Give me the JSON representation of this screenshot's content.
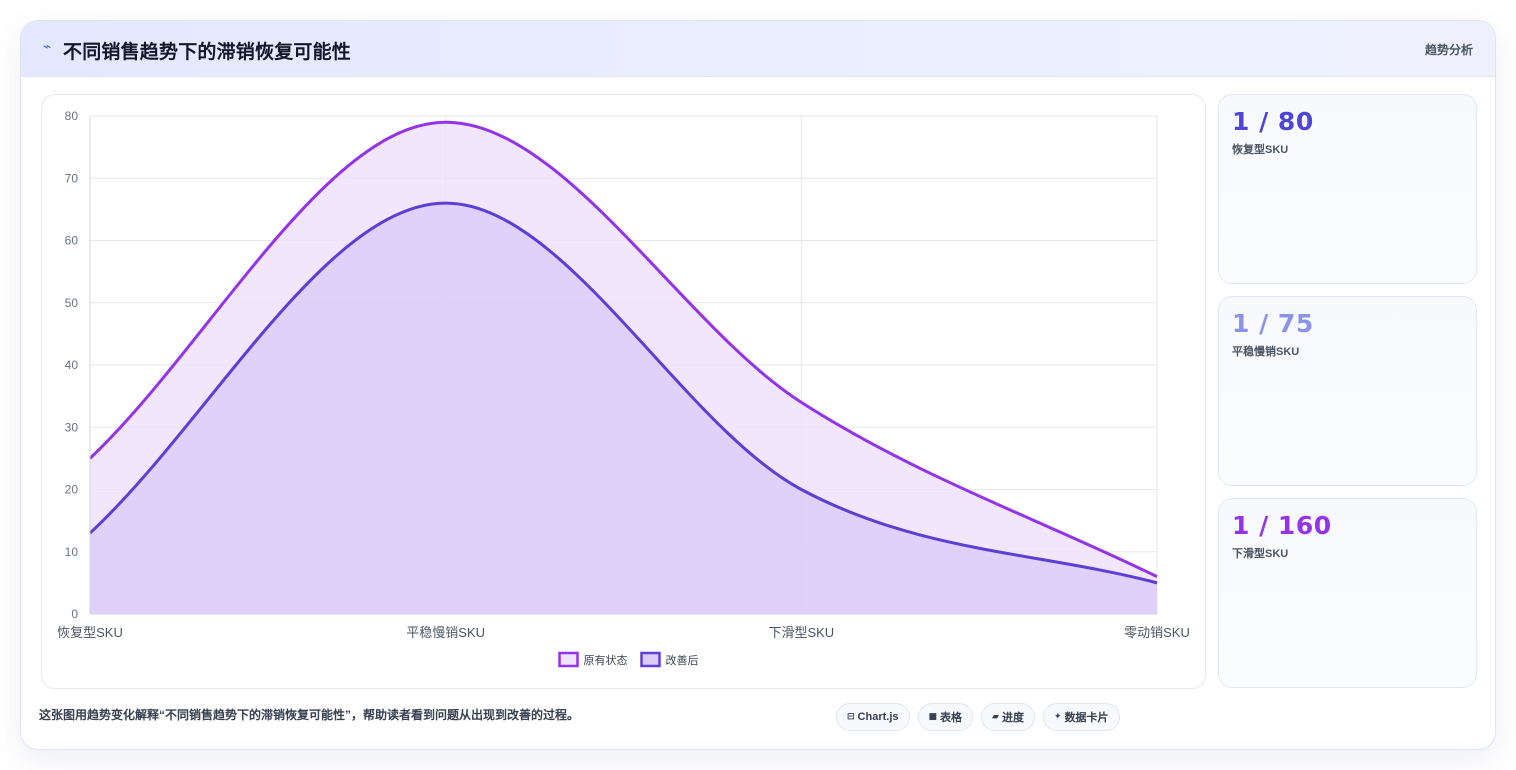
{
  "header": {
    "icon": "trend-line-icon",
    "title": "不同销售趋势下的滞销恢复可能性",
    "tag": "趋势分析"
  },
  "chart_data": {
    "type": "area",
    "categories": [
      "恢复型SKU",
      "平稳慢销SKU",
      "下滑型SKU",
      "零动销SKU"
    ],
    "series": [
      {
        "name": "原有状态",
        "values": [
          25,
          79,
          34,
          6
        ],
        "color": "#9333ea",
        "fill": "#efe2fb"
      },
      {
        "name": "改善后",
        "values": [
          13,
          66,
          20,
          5
        ],
        "color": "#5b3fd6",
        "fill": "#dccdf8"
      }
    ],
    "ylim": [
      0,
      80
    ],
    "yticks": [
      0,
      10,
      20,
      30,
      40,
      50,
      60,
      70,
      80
    ],
    "grid": true,
    "legend": "bottom",
    "smooth": true
  },
  "stats": [
    {
      "value": "1 / 80",
      "label": "恢复型SKU",
      "color": "#4f46d8"
    },
    {
      "value": "1 / 75",
      "label": "平稳慢销SKU",
      "color": "#8b93e8"
    },
    {
      "value": "1 / 160",
      "label": "下滑型SKU",
      "color": "#9333ea"
    }
  ],
  "footer": {
    "description": "这张图用趋势变化解释“不同销售趋势下的滞销恢复可能性”，帮助读者看到问题从出现到改善的过程。",
    "pills": [
      {
        "icon": "window-icon",
        "glyph": "⊟",
        "label": "Chart.js"
      },
      {
        "icon": "table-icon",
        "glyph": "■",
        "label": "表格"
      },
      {
        "icon": "progress-icon",
        "glyph": "▰",
        "label": "进度"
      },
      {
        "icon": "sparkle-icon",
        "glyph": "✦",
        "label": "数据卡片"
      }
    ]
  }
}
